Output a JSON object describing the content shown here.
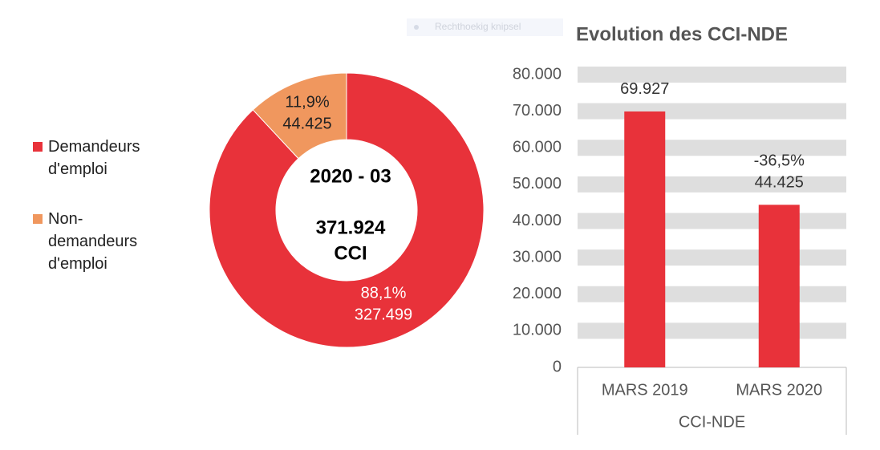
{
  "snip_overlay": "Rechthoekig knipsel",
  "chart_data": [
    {
      "type": "pie",
      "donut": true,
      "categories": [
        "Demandeurs d'emploi",
        "Non-demandeurs d'emploi"
      ],
      "values": [
        327499,
        44425
      ],
      "value_labels": [
        "327.499",
        "44.425"
      ],
      "percents": [
        88.1,
        11.9
      ],
      "percent_labels": [
        "88,1%",
        "11,9%"
      ],
      "colors": [
        "#e8323a",
        "#f0975e"
      ],
      "center_texts": [
        "2020 - 03",
        "371.924",
        "CCI"
      ],
      "legend": "left"
    },
    {
      "type": "bar",
      "title": "Evolution des CCI-NDE",
      "categories": [
        "MARS 2019",
        "MARS 2020"
      ],
      "values": [
        69927,
        44425
      ],
      "value_labels": [
        "69.927",
        "44.425"
      ],
      "annotation": "-36,5%",
      "x_group_label": "CCI-NDE",
      "color": "#e8323a",
      "ylim": [
        0,
        80000
      ],
      "yticks": [
        0,
        {
          "value": 10000,
          "label": "10.000"
        },
        {
          "value": 20000,
          "label": "20.000"
        },
        {
          "value": 30000,
          "label": "30.000"
        },
        {
          "value": 40000,
          "label": "40.000"
        },
        {
          "value": 50000,
          "label": "50.000"
        },
        {
          "value": 60000,
          "label": "60.000"
        },
        {
          "value": 70000,
          "label": "70.000"
        },
        {
          "value": 80000,
          "label": "80.000"
        }
      ],
      "grid": true
    }
  ]
}
